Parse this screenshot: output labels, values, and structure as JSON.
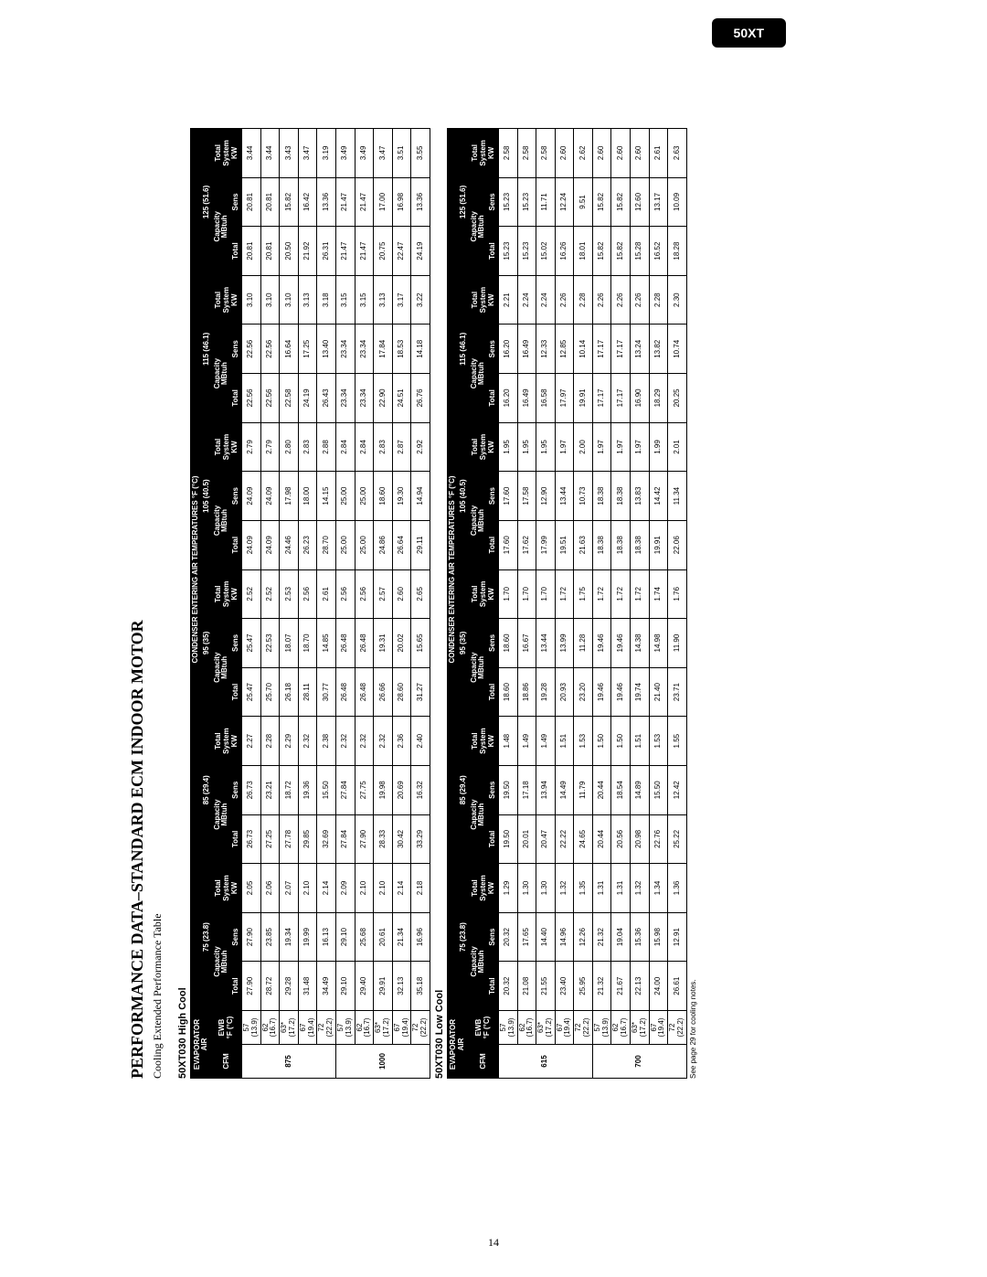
{
  "badge": "50XT",
  "pageNumber": "14",
  "heading": "PERFORMANCE DATA–STANDARD ECM INDOOR MOTOR",
  "subtitle": "Cooling Extended Performance Table",
  "footnote": "See page 29 for cooling notes.",
  "header": {
    "evaporator": "EVAPORATOR\nAIR",
    "condenser": "CONDENSER ENTERING AIR TEMPERATURES °F (°C)",
    "cfm": "CFM",
    "ewb": "EWB\n°F (°C)",
    "capacity": "Capacity\nMBtuh",
    "total": "Total",
    "sens": "Sens",
    "tsk": "Total\nSystem\nKW",
    "temps": [
      "75 (23.8)",
      "85 (29.4)",
      "95 (35)",
      "105 (40.5)",
      "115 (46.1)",
      "125 (51.6)"
    ]
  },
  "tables": [
    {
      "title": "50XT030 High Cool",
      "groups": [
        {
          "cfm": "875",
          "rows": [
            {
              "ewb": "57\n(13.9)",
              "v": [
                "27.90",
                "27.90",
                "2.05",
                "26.73",
                "26.73",
                "2.27",
                "25.47",
                "25.47",
                "2.52",
                "24.09",
                "24.09",
                "2.79",
                "22.56",
                "22.56",
                "3.10",
                "20.81",
                "20.81",
                "3.44"
              ]
            },
            {
              "ewb": "62\n(16.7)",
              "v": [
                "28.72",
                "23.85",
                "2.06",
                "27.25",
                "23.21",
                "2.28",
                "25.70",
                "22.53",
                "2.52",
                "24.09",
                "24.09",
                "2.79",
                "22.56",
                "22.56",
                "3.10",
                "20.81",
                "20.81",
                "3.44"
              ]
            },
            {
              "ewb": "63*\n(17.2)",
              "v": [
                "29.28",
                "19.34",
                "2.07",
                "27.78",
                "18.72",
                "2.29",
                "26.18",
                "18.07",
                "2.53",
                "24.46",
                "17.98",
                "2.80",
                "22.58",
                "16.64",
                "3.10",
                "20.50",
                "15.82",
                "3.43"
              ]
            },
            {
              "ewb": "67\n(19.4)",
              "v": [
                "31.48",
                "19.99",
                "2.10",
                "29.85",
                "19.36",
                "2.32",
                "28.11",
                "18.70",
                "2.56",
                "26.23",
                "18.00",
                "2.83",
                "24.19",
                "17.25",
                "3.13",
                "21.92",
                "16.42",
                "3.47"
              ]
            },
            {
              "ewb": "72\n(22.2)",
              "v": [
                "34.49",
                "16.13",
                "2.14",
                "32.69",
                "15.50",
                "2.38",
                "30.77",
                "14.85",
                "2.61",
                "28.70",
                "14.15",
                "2.88",
                "26.43",
                "13.40",
                "3.18",
                "26.31",
                "13.36",
                "3.19"
              ]
            }
          ]
        },
        {
          "cfm": "1000",
          "rows": [
            {
              "ewb": "57\n(13.9)",
              "v": [
                "29.10",
                "29.10",
                "2.09",
                "27.84",
                "27.84",
                "2.32",
                "26.48",
                "26.48",
                "2.56",
                "25.00",
                "25.00",
                "2.84",
                "23.34",
                "23.34",
                "3.15",
                "21.47",
                "21.47",
                "3.49"
              ]
            },
            {
              "ewb": "62\n(16.7)",
              "v": [
                "29.40",
                "25.68",
                "2.10",
                "27.90",
                "27.75",
                "2.32",
                "26.48",
                "26.48",
                "2.56",
                "25.00",
                "25.00",
                "2.84",
                "23.34",
                "23.34",
                "3.15",
                "21.47",
                "21.47",
                "3.49"
              ]
            },
            {
              "ewb": "63*\n(17.2)",
              "v": [
                "29.91",
                "20.61",
                "2.10",
                "28.33",
                "19.98",
                "2.32",
                "26.66",
                "19.31",
                "2.57",
                "24.86",
                "18.60",
                "2.83",
                "22.90",
                "17.84",
                "3.13",
                "20.75",
                "17.00",
                "3.47"
              ]
            },
            {
              "ewb": "67\n(19.4)",
              "v": [
                "32.13",
                "21.34",
                "2.14",
                "30.42",
                "20.69",
                "2.36",
                "28.60",
                "20.02",
                "2.60",
                "26.64",
                "19.30",
                "2.87",
                "24.51",
                "18.53",
                "3.17",
                "22.47",
                "16.98",
                "3.51"
              ]
            },
            {
              "ewb": "72\n(22.2)",
              "v": [
                "35.18",
                "16.96",
                "2.18",
                "33.29",
                "16.32",
                "2.40",
                "31.27",
                "15.65",
                "2.65",
                "29.11",
                "14.94",
                "2.92",
                "26.76",
                "14.18",
                "3.22",
                "24.19",
                "13.36",
                "3.55"
              ]
            }
          ]
        }
      ]
    },
    {
      "title": "50XT030 Low Cool",
      "groups": [
        {
          "cfm": "615",
          "rows": [
            {
              "ewb": "57\n(13.9)",
              "v": [
                "20.32",
                "20.32",
                "1.29",
                "19.50",
                "19.50",
                "1.48",
                "18.60",
                "18.60",
                "1.70",
                "17.60",
                "17.60",
                "1.95",
                "16.20",
                "16.20",
                "2.21",
                "15.23",
                "15.23",
                "2.58"
              ]
            },
            {
              "ewb": "62\n(16.7)",
              "v": [
                "21.08",
                "17.65",
                "1.30",
                "20.01",
                "17.18",
                "1.49",
                "18.86",
                "16.67",
                "1.70",
                "17.62",
                "17.58",
                "1.95",
                "16.49",
                "16.49",
                "2.24",
                "15.23",
                "15.23",
                "2.58"
              ]
            },
            {
              "ewb": "63*\n(17.2)",
              "v": [
                "21.55",
                "14.40",
                "1.30",
                "20.47",
                "13.94",
                "1.49",
                "19.28",
                "13.44",
                "1.70",
                "17.99",
                "12.90",
                "1.95",
                "16.58",
                "12.33",
                "2.24",
                "15.02",
                "11.71",
                "2.58"
              ]
            },
            {
              "ewb": "67\n(19.4)",
              "v": [
                "23.40",
                "14.96",
                "1.32",
                "22.22",
                "14.49",
                "1.51",
                "20.93",
                "13.99",
                "1.72",
                "19.51",
                "13.44",
                "1.97",
                "17.97",
                "12.85",
                "2.26",
                "16.26",
                "12.24",
                "2.60"
              ]
            },
            {
              "ewb": "72\n(22.2)",
              "v": [
                "25.95",
                "12.26",
                "1.35",
                "24.65",
                "11.79",
                "1.53",
                "23.20",
                "11.28",
                "1.75",
                "21.63",
                "10.73",
                "2.00",
                "19.91",
                "10.14",
                "2.28",
                "18.01",
                "9.51",
                "2.62"
              ]
            }
          ]
        },
        {
          "cfm": "700",
          "rows": [
            {
              "ewb": "57\n(13.9)",
              "v": [
                "21.32",
                "21.32",
                "1.31",
                "20.44",
                "20.44",
                "1.50",
                "19.46",
                "19.46",
                "1.72",
                "18.38",
                "18.38",
                "1.97",
                "17.17",
                "17.17",
                "2.26",
                "15.82",
                "15.82",
                "2.60"
              ]
            },
            {
              "ewb": "62\n(16.7)",
              "v": [
                "21.67",
                "19.04",
                "1.31",
                "20.56",
                "18.54",
                "1.50",
                "19.46",
                "19.46",
                "1.72",
                "18.38",
                "18.38",
                "1.97",
                "17.17",
                "17.17",
                "2.26",
                "15.82",
                "15.82",
                "2.60"
              ]
            },
            {
              "ewb": "63*\n(17.2)",
              "v": [
                "22.13",
                "15.36",
                "1.32",
                "20.98",
                "14.89",
                "1.51",
                "19.74",
                "14.38",
                "1.72",
                "18.38",
                "13.83",
                "1.97",
                "16.90",
                "13.24",
                "2.26",
                "15.28",
                "12.60",
                "2.60"
              ]
            },
            {
              "ewb": "67\n(19.4)",
              "v": [
                "24.00",
                "15.98",
                "1.34",
                "22.76",
                "15.50",
                "1.53",
                "21.40",
                "14.98",
                "1.74",
                "19.91",
                "14.42",
                "1.99",
                "18.29",
                "13.82",
                "2.28",
                "16.52",
                "13.17",
                "2.61"
              ]
            },
            {
              "ewb": "72\n(22.2)",
              "v": [
                "26.61",
                "12.91",
                "1.36",
                "25.22",
                "12.42",
                "1.55",
                "23.71",
                "11.90",
                "1.76",
                "22.06",
                "11.34",
                "2.01",
                "20.25",
                "10.74",
                "2.30",
                "18.28",
                "10.09",
                "2.63"
              ]
            }
          ]
        }
      ]
    }
  ]
}
